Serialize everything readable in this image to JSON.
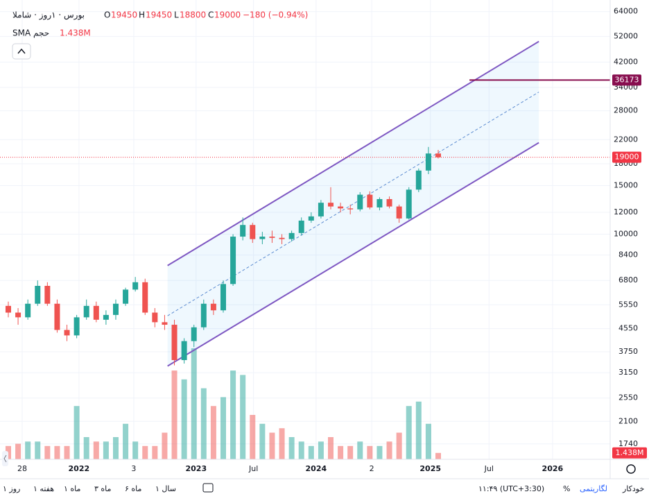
{
  "chart_data": {
    "type": "candlestick",
    "header": {
      "symbol": "بورس · ۱روز · شاملا",
      "o": "O",
      "o_value": 19450,
      "h": "H",
      "h_value": 19450,
      "l": "L",
      "l_value": 18800,
      "c": "C",
      "c_value": 19000,
      "change": "−180 (−0.94%)",
      "indicator": "SMA حجم",
      "indicator_value": "1.438M"
    },
    "log_scale": true,
    "grid": true,
    "up_color": "#26a69a",
    "down_color": "#ef5350",
    "xlim": [
      -0.85,
      61.6
    ],
    "xticks": [
      {
        "value": 1.42,
        "label": "28"
      },
      {
        "value": 7.23,
        "label": "2022"
      },
      {
        "value": 12.84,
        "label": "3"
      },
      {
        "value": 19.22,
        "label": "2023"
      },
      {
        "value": 25.1,
        "label": "Jul"
      },
      {
        "value": 31.5,
        "label": "2024"
      },
      {
        "value": 37.2,
        "label": "2"
      },
      {
        "value": 43.2,
        "label": "2025"
      },
      {
        "value": 49.2,
        "label": "Jul"
      },
      {
        "value": 55.7,
        "label": "2026"
      }
    ],
    "ylim": [
      1530,
      70500
    ],
    "yticks": [
      64000,
      52000,
      42000,
      34000,
      28000,
      22000,
      18000,
      15000,
      12000,
      10000,
      8400,
      6800,
      5550,
      4550,
      3750,
      3150,
      2550,
      2100,
      1740
    ],
    "open": [
      5500,
      5200,
      5000,
      5600,
      6500,
      5600,
      4500,
      4300,
      5000,
      5500,
      4900,
      5100,
      5600,
      6300,
      6700,
      5200,
      4800,
      4700,
      3500,
      4100,
      4600,
      5600,
      5300,
      6600,
      9800,
      10800,
      9600,
      9800,
      9700,
      9600,
      10100,
      11200,
      11600,
      13000,
      12600,
      12400,
      12300,
      13900,
      12500,
      13400,
      12600,
      11400,
      14500,
      17000,
      19600
    ],
    "high": [
      5700,
      5400,
      5800,
      6800,
      6700,
      5800,
      4700,
      5100,
      5800,
      5700,
      5300,
      5800,
      6400,
      7000,
      6900,
      5400,
      5100,
      4900,
      4200,
      4700,
      5800,
      5800,
      6800,
      10000,
      11500,
      11000,
      10200,
      10300,
      10000,
      10300,
      11500,
      12000,
      13300,
      14800,
      13000,
      12800,
      14200,
      14300,
      13600,
      13700,
      12800,
      14800,
      17300,
      20700,
      20200
    ],
    "low": [
      5000,
      4700,
      4900,
      5500,
      5500,
      4400,
      4100,
      4200,
      4900,
      4800,
      4700,
      4900,
      5500,
      6200,
      5100,
      4600,
      4500,
      3350,
      3400,
      3900,
      4500,
      5100,
      5200,
      6500,
      9500,
      9300,
      9200,
      9300,
      9200,
      9400,
      9900,
      11000,
      11400,
      12300,
      12000,
      11800,
      12100,
      12300,
      12200,
      12400,
      11000,
      11300,
      14200,
      16500,
      18800
    ],
    "close": [
      5200,
      5000,
      5600,
      6500,
      5600,
      4500,
      4300,
      5000,
      5500,
      4900,
      5100,
      5600,
      6300,
      6700,
      5200,
      4800,
      4700,
      3500,
      4100,
      4600,
      5600,
      5300,
      6600,
      9800,
      10800,
      9600,
      9800,
      9700,
      9600,
      10100,
      11200,
      11600,
      13000,
      12600,
      12400,
      12300,
      13900,
      12500,
      13400,
      12600,
      11400,
      14500,
      17000,
      19600,
      19000
    ],
    "volume": {
      "lim": [
        0,
        25000000
      ],
      "label": "1.438M",
      "label_color": "#f23645",
      "values": [
        3000000,
        3500000,
        4000000,
        4000000,
        3000000,
        3000000,
        3000000,
        12000000,
        5000000,
        4000000,
        4000000,
        5000000,
        8000000,
        4000000,
        3000000,
        3000000,
        6000000,
        20000000,
        18000000,
        25000000,
        16000000,
        12000000,
        14000000,
        20000000,
        19000000,
        10000000,
        8000000,
        6000000,
        7000000,
        5000000,
        4000000,
        3000000,
        4000000,
        5000000,
        3000000,
        3000000,
        4000000,
        3000000,
        3000000,
        4000000,
        6000000,
        12000000,
        13000000,
        8000000,
        1438000
      ]
    },
    "channel": {
      "x": [
        16.3,
        54.3
      ],
      "upper": [
        7700,
        49900
      ],
      "lower": [
        3330,
        21450
      ],
      "color": "#7e57c2"
    },
    "horizontal_line": {
      "x": 47.2,
      "value": 36173,
      "color": "#880e4f"
    },
    "price_line": {
      "value": 19000,
      "color": "#f23645"
    },
    "toolbar": {
      "ranges": [
        "روز ۱",
        "هفته ۱",
        "ماه ۱",
        "ماه ۳",
        "ماه ۶",
        "سال ۱"
      ],
      "time": "۱۱:۴۹ (UTC+3:30)",
      "percent": "%",
      "log": "لگاریتمی",
      "auto": "خودکار"
    }
  }
}
